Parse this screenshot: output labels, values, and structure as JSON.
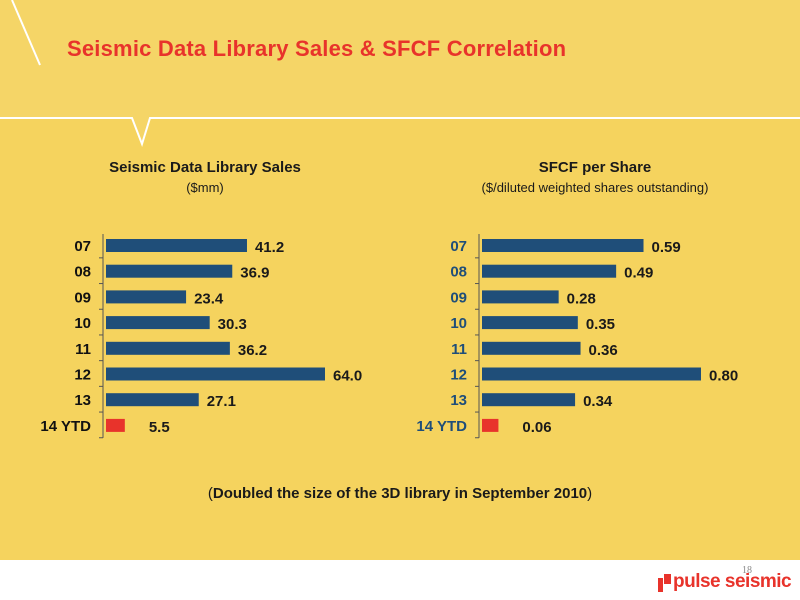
{
  "title": "Seismic Data Library Sales & SFCF Correlation",
  "footnote": "Doubled the  size of the 3D library in September 2010",
  "page_number": "18",
  "logo_text": "pulse seismic",
  "colors": {
    "background": "#f5d35e",
    "bar": "#1f4e79",
    "highlight_bar": "#e8332b",
    "title": "#e8332b"
  },
  "chart_data": [
    {
      "type": "bar",
      "orientation": "horizontal",
      "title": "Seismic Data Library Sales",
      "subtitle": "($mm)",
      "categories": [
        "07",
        "08",
        "09",
        "10",
        "11",
        "12",
        "13",
        "14 YTD"
      ],
      "values": [
        41.2,
        36.9,
        23.4,
        30.3,
        36.2,
        64.0,
        27.1,
        5.5
      ],
      "value_labels": [
        "41.2",
        "36.9",
        "23.4",
        "30.3",
        "36.2",
        "64.0",
        "27.1",
        "5.5"
      ],
      "highlight": "14 YTD",
      "xlim": [
        0,
        64
      ]
    },
    {
      "type": "bar",
      "orientation": "horizontal",
      "title": "SFCF per Share",
      "subtitle": "($/diluted weighted shares outstanding)",
      "categories": [
        "07",
        "08",
        "09",
        "10",
        "11",
        "12",
        "13",
        "14 YTD"
      ],
      "values": [
        0.59,
        0.49,
        0.28,
        0.35,
        0.36,
        0.8,
        0.34,
        0.06
      ],
      "value_labels": [
        "0.59",
        "0.49",
        "0.28",
        "0.35",
        "0.36",
        "0.80",
        "0.34",
        "0.06"
      ],
      "highlight": "14 YTD",
      "xlim": [
        0,
        0.8
      ]
    }
  ]
}
